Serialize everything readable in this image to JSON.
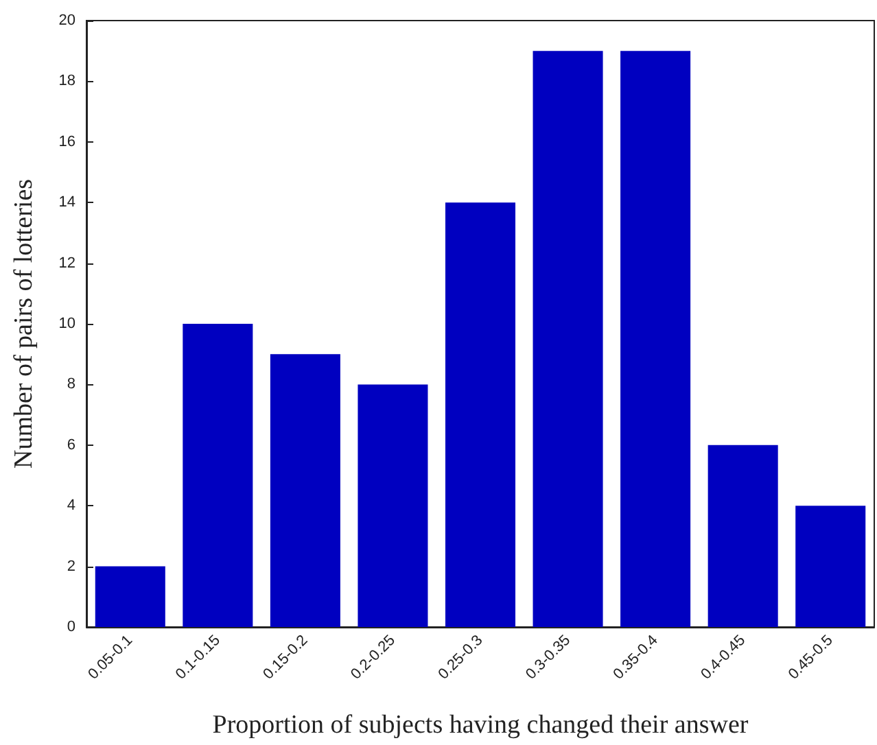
{
  "chart_data": {
    "type": "bar",
    "xlabel": "Proportion of subjects having changed their answer",
    "ylabel": "Number of pairs of lotteries",
    "categories": [
      "0.05-0.1",
      "0.1-0.15",
      "0.15-0.2",
      "0.2-0.25",
      "0.25-0.3",
      "0.3-0.35",
      "0.35-0.4",
      "0.4-0.45",
      "0.45-0.5"
    ],
    "values": [
      2,
      10,
      9,
      8,
      14,
      19,
      19,
      6,
      4
    ],
    "color": "#0000c0",
    "ylim": [
      0,
      20
    ],
    "yticks": [
      0,
      2,
      4,
      6,
      8,
      10,
      12,
      14,
      16,
      18,
      20
    ],
    "grid": false
  }
}
